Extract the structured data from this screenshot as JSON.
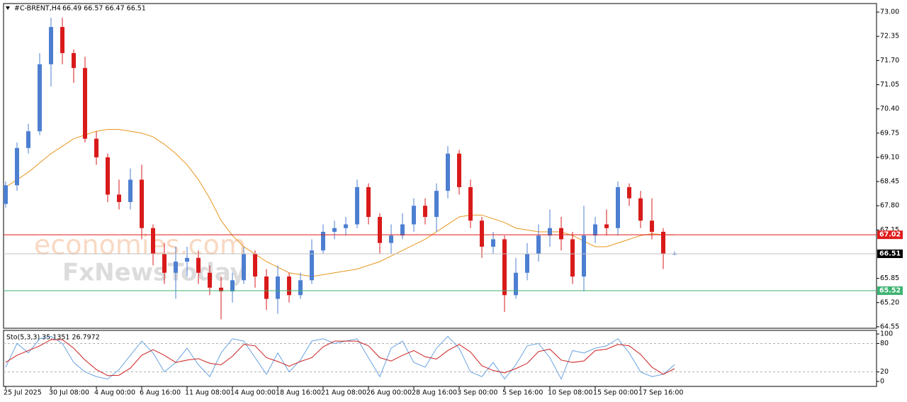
{
  "chart_data": [
    {
      "type": "candlestick",
      "title": "#C-BRENT,H4",
      "ohlc_label": "66.49 66.57 66.47 66.51",
      "categories": [
        "25 Jul 2025",
        null,
        null,
        null,
        "30 Jul 08:00",
        null,
        null,
        null,
        "4 Aug 00:00",
        null,
        null,
        null,
        "6 Aug 16:00",
        null,
        null,
        null,
        "11 Aug 08:00",
        null,
        null,
        null,
        "14 Aug 00:00",
        null,
        null,
        null,
        "18 Aug 16:00",
        null,
        null,
        null,
        "21 Aug 08:00",
        null,
        null,
        null,
        "26 Aug 00:00",
        null,
        null,
        null,
        "28 Aug 16:00",
        null,
        null,
        null,
        "3 Sep 00:00",
        null,
        null,
        null,
        "5 Sep 16:00",
        null,
        null,
        null,
        "10 Sep 08:00",
        null,
        null,
        null,
        "15 Sep 00:00",
        null,
        null,
        null,
        "17 Sep 16:00",
        null,
        null,
        null
      ],
      "open": [
        67.85,
        68.35,
        69.35,
        69.8,
        71.6,
        72.6,
        71.9,
        71.5,
        69.6,
        69.1,
        68.1,
        67.9,
        68.5,
        67.2,
        66.5,
        66.0,
        66.3,
        66.4,
        66.0,
        65.6,
        65.5,
        65.8,
        66.5,
        65.9,
        65.3,
        65.9,
        65.4,
        65.8,
        66.6,
        67.1,
        67.2,
        67.3,
        68.3,
        67.5,
        66.8,
        67.0,
        67.3,
        67.8,
        67.5,
        68.2,
        69.2,
        68.3,
        67.4,
        66.7,
        66.9,
        65.4,
        66.0,
        66.5,
        67.0,
        67.2,
        66.9,
        65.9,
        67.0,
        67.3,
        67.2,
        68.3,
        68.0,
        67.4,
        67.1,
        66.49
      ],
      "high": [
        68.45,
        69.5,
        70.0,
        71.9,
        72.85,
        72.85,
        72.0,
        71.8,
        69.8,
        69.2,
        68.5,
        68.8,
        68.9,
        67.3,
        66.8,
        66.7,
        66.7,
        66.6,
        66.2,
        65.9,
        66.0,
        66.7,
        66.6,
        66.1,
        66.2,
        66.0,
        66.0,
        66.9,
        67.3,
        67.4,
        67.5,
        68.5,
        68.4,
        67.6,
        67.3,
        67.6,
        68.0,
        68.0,
        68.4,
        69.4,
        69.3,
        68.5,
        67.5,
        67.1,
        67.0,
        66.4,
        66.8,
        67.3,
        67.7,
        67.5,
        67.1,
        67.8,
        67.5,
        67.7,
        68.45,
        68.4,
        68.2,
        68.0,
        67.2,
        66.57
      ],
      "low": [
        67.75,
        68.2,
        69.2,
        69.7,
        71.0,
        71.6,
        71.1,
        69.5,
        68.9,
        67.9,
        67.7,
        67.7,
        66.9,
        66.2,
        65.7,
        65.3,
        65.9,
        65.7,
        65.4,
        64.75,
        65.2,
        65.7,
        65.6,
        65.0,
        64.9,
        65.2,
        65.3,
        65.7,
        66.5,
        66.9,
        67.0,
        67.2,
        67.3,
        66.5,
        66.5,
        66.9,
        67.1,
        67.3,
        67.1,
        68.0,
        68.1,
        67.2,
        66.4,
        66.5,
        64.95,
        65.3,
        65.8,
        66.3,
        66.7,
        66.6,
        65.7,
        65.5,
        66.8,
        67.0,
        67.0,
        67.8,
        67.2,
        66.9,
        66.1,
        66.47
      ],
      "close": [
        68.35,
        69.35,
        69.8,
        71.6,
        72.6,
        71.9,
        71.5,
        69.6,
        69.1,
        68.1,
        67.9,
        68.5,
        67.2,
        66.5,
        66.0,
        66.3,
        66.4,
        66.0,
        65.6,
        65.5,
        65.8,
        66.5,
        65.9,
        65.3,
        65.9,
        65.4,
        65.8,
        66.6,
        67.1,
        67.2,
        67.3,
        68.3,
        67.5,
        66.8,
        67.0,
        67.3,
        67.8,
        67.5,
        68.2,
        69.2,
        68.3,
        67.4,
        66.7,
        66.9,
        65.4,
        66.0,
        66.5,
        67.0,
        67.2,
        66.9,
        65.9,
        67.0,
        67.3,
        67.2,
        68.3,
        68.0,
        67.4,
        67.1,
        66.5,
        66.51
      ],
      "up_color": "#4d7fd1",
      "down_color": "#d91a1a",
      "ma": {
        "color": "#e8961e",
        "values": [
          68.3,
          68.5,
          68.7,
          68.95,
          69.2,
          69.4,
          69.6,
          69.7,
          69.8,
          69.85,
          69.85,
          69.8,
          69.75,
          69.65,
          69.45,
          69.2,
          68.9,
          68.5,
          68.0,
          67.4,
          67.0,
          66.7,
          66.5,
          66.3,
          66.15,
          66.0,
          65.95,
          65.9,
          65.95,
          66.0,
          66.05,
          66.1,
          66.2,
          66.3,
          66.45,
          66.6,
          66.75,
          66.9,
          67.1,
          67.3,
          67.5,
          67.55,
          67.55,
          67.45,
          67.35,
          67.2,
          67.15,
          67.1,
          67.1,
          67.1,
          67.0,
          66.85,
          66.7,
          66.7,
          66.8,
          66.9,
          67.0,
          67.05,
          67.02,
          67.02
        ]
      },
      "ylim": [
        64.51,
        73.23
      ],
      "yticks": [
        {
          "value": 73,
          "label": "73.00"
        },
        72.35,
        {
          "value": 71.7,
          "label": "71.70"
        },
        71.05,
        {
          "value": 70.4,
          "label": "70.40"
        },
        69.75,
        {
          "value": 69.1,
          "label": "69.10"
        },
        68.45,
        {
          "value": 67.8,
          "label": "67.80"
        },
        67.15,
        65.85,
        {
          "value": 65.2,
          "label": "65.20"
        },
        64.55
      ],
      "price_lines": [
        {
          "value": 67.02,
          "color": "#e01b1b",
          "label_bg": "#e01b1b"
        },
        {
          "value": 66.51,
          "color": "#c0c0c0",
          "label_bg": "#000000"
        },
        {
          "value": 65.52,
          "color": "#3cb371",
          "label_bg": "#3cb371"
        }
      ]
    },
    {
      "type": "line",
      "title": "Sto(5,3,3) 35.1351 26.7972",
      "series": [
        {
          "color": "#6aa3e0",
          "values": [
            30,
            80,
            60,
            90,
            95,
            80,
            40,
            20,
            10,
            5,
            25,
            55,
            85,
            60,
            20,
            40,
            70,
            35,
            10,
            60,
            90,
            85,
            50,
            15,
            60,
            20,
            45,
            85,
            90,
            80,
            85,
            90,
            50,
            10,
            70,
            85,
            40,
            30,
            70,
            95,
            70,
            20,
            10,
            40,
            5,
            35,
            75,
            80,
            50,
            5,
            65,
            60,
            70,
            75,
            90,
            60,
            20,
            10,
            15,
            35.1351
          ]
        },
        {
          "color": "#cc1f1f",
          "values": [
            40,
            55,
            65,
            75,
            88,
            88,
            70,
            45,
            25,
            12,
            13,
            28,
            55,
            67,
            55,
            40,
            45,
            48,
            38,
            35,
            53,
            78,
            75,
            50,
            42,
            32,
            42,
            50,
            73,
            85,
            85,
            85,
            75,
            50,
            43,
            55,
            65,
            52,
            47,
            65,
            78,
            62,
            33,
            23,
            18,
            27,
            38,
            63,
            68,
            45,
            40,
            43,
            65,
            68,
            78,
            75,
            57,
            30,
            15,
            26.7972
          ]
        }
      ],
      "ylim": [
        -10.6,
        107.6
      ],
      "yticks": [
        100,
        80,
        20,
        0
      ],
      "levels": [
        80,
        20
      ]
    }
  ],
  "watermark": [
    "economies.com",
    "FxNewsToday"
  ]
}
